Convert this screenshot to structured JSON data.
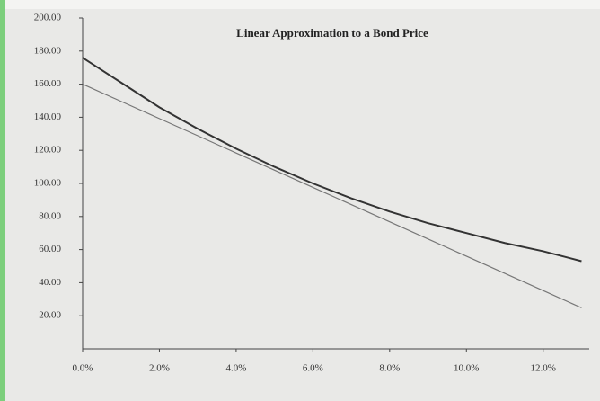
{
  "chart_data": {
    "type": "line",
    "title": "Linear Approximation to a Bond Price",
    "x": [
      0,
      1,
      2,
      3,
      4,
      5,
      6,
      7,
      8,
      9,
      10,
      11,
      12,
      13
    ],
    "series": [
      {
        "color": "#333333",
        "values": [
          176,
          161,
          146,
          133,
          121,
          110,
          100,
          91,
          83,
          76,
          70,
          64,
          59,
          53
        ]
      },
      {
        "color": "#777777",
        "values": [
          160,
          149.6,
          139.2,
          128.8,
          118.4,
          108,
          97.6,
          87.2,
          76.8,
          66.4,
          56,
          45.6,
          35.2,
          24.8
        ]
      }
    ],
    "xlim": [
      0,
      13.2
    ],
    "ylim": [
      0,
      200
    ],
    "xticks": [
      {
        "value": 0,
        "label": "0.0%"
      },
      {
        "value": 2,
        "label": "2.0%"
      },
      {
        "value": 4,
        "label": "4.0%"
      },
      {
        "value": 6,
        "label": "6.0%"
      },
      {
        "value": 8,
        "label": "8.0%"
      },
      {
        "value": 10,
        "label": "10.0%"
      },
      {
        "value": 12,
        "label": "12.0%"
      }
    ],
    "yticks": [
      {
        "value": 20,
        "label": "20.00"
      },
      {
        "value": 40,
        "label": "40.00"
      },
      {
        "value": 60,
        "label": "60.00"
      },
      {
        "value": 80,
        "label": "80.00"
      },
      {
        "value": 100,
        "label": "100.00"
      },
      {
        "value": 120,
        "label": "120.00"
      },
      {
        "value": 140,
        "label": "140.00"
      },
      {
        "value": 160,
        "label": "160.00"
      },
      {
        "value": 180,
        "label": "180.00"
      },
      {
        "value": 200,
        "label": "200.00"
      }
    ],
    "grid": false
  }
}
